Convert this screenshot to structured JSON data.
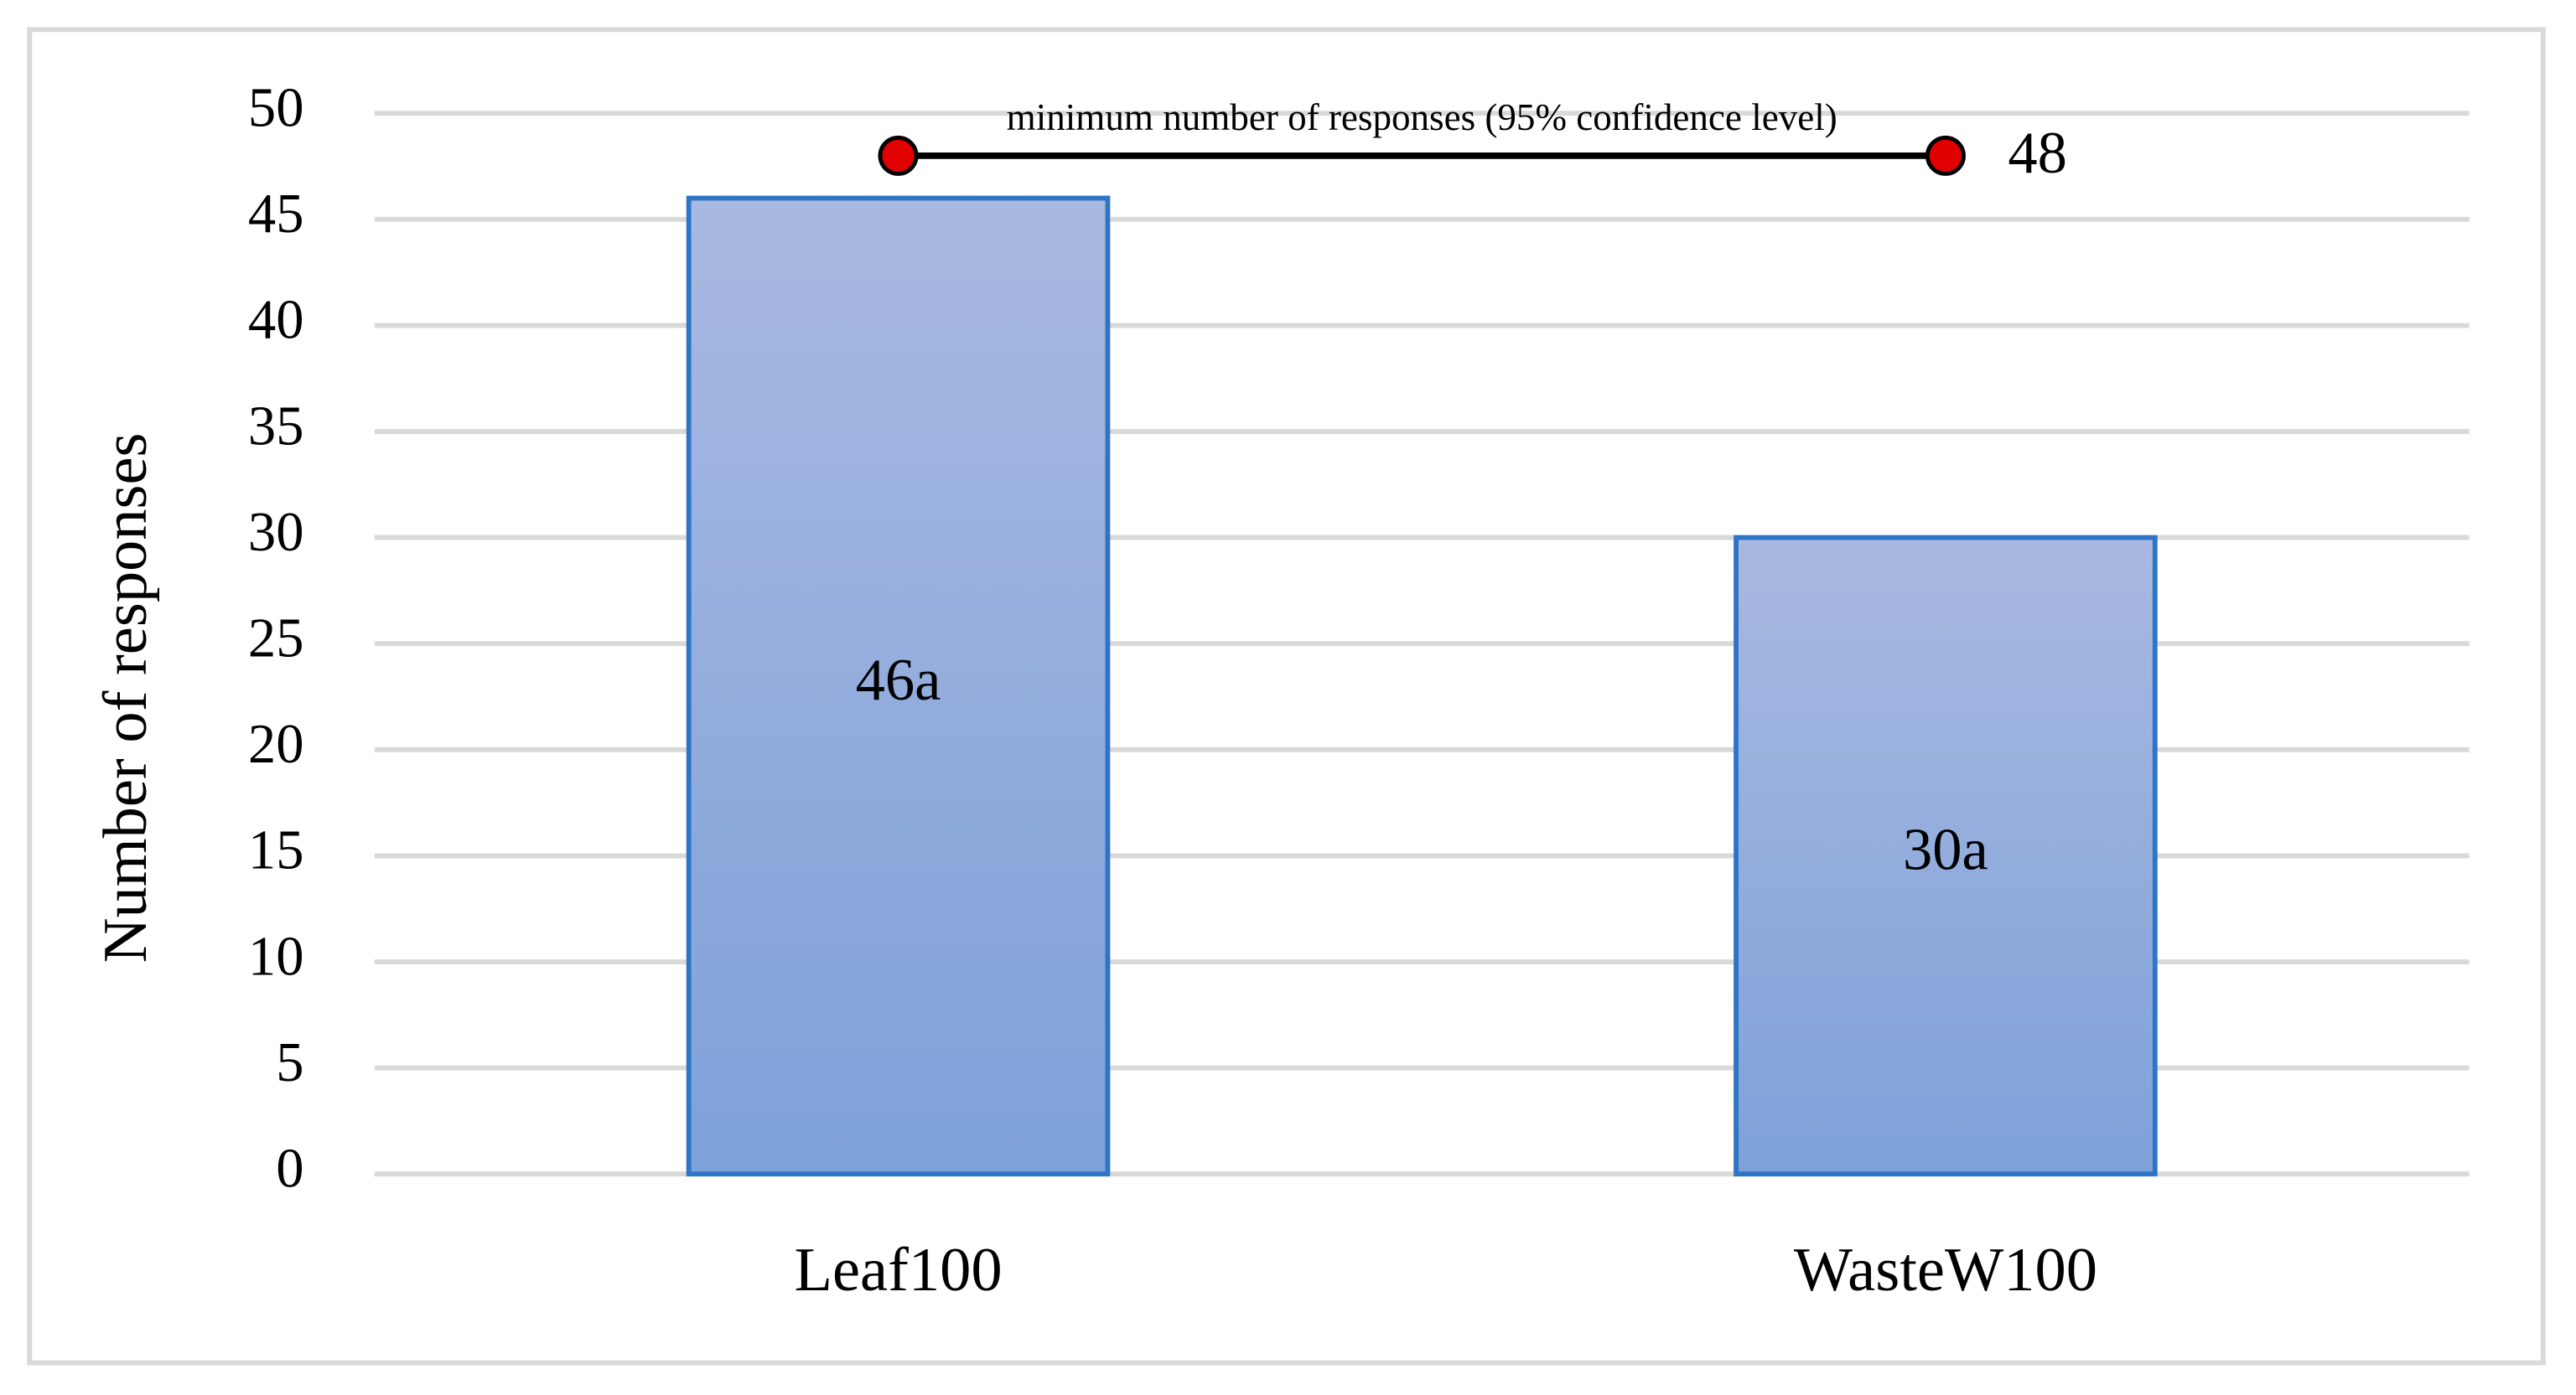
{
  "chart_data": {
    "type": "bar",
    "ylabel": "Number of responses",
    "categories": [
      "Leaf100",
      "WasteW100"
    ],
    "values": [
      46,
      30
    ],
    "value_labels": [
      "46a",
      "30a"
    ],
    "color": "#2e75c6",
    "gradient": [
      "#a9b9e1",
      "#7ea1d9"
    ],
    "ylim": [
      0,
      50
    ],
    "yticks": [
      0,
      5,
      10,
      15,
      20,
      25,
      30,
      35,
      40,
      45,
      50
    ],
    "grid": true,
    "reference_line": {
      "label": "minimum number of responses (95% confidence level)",
      "values": [
        48,
        48
      ],
      "color": "#e00000"
    }
  }
}
